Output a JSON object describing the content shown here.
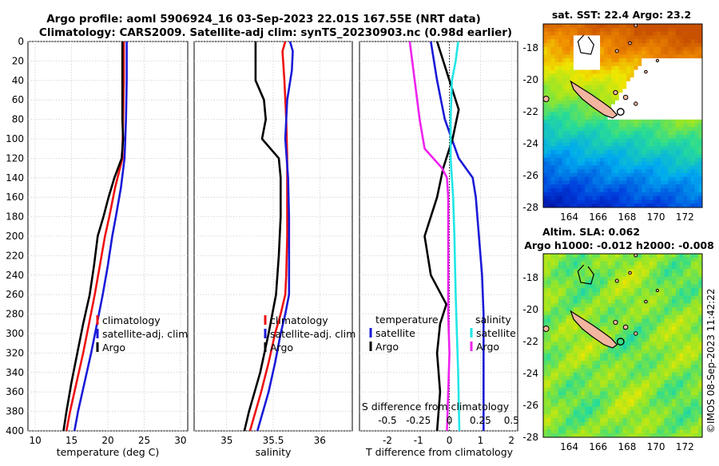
{
  "title_line1": "Argo profile: aoml 5906924_16 03-Sep-2023 22.01S 167.55E (NRT data)",
  "title_line2": "Climatology: CARS2009. Satellite-adj clim: synTS_20230903.nc (0.98d earlier)",
  "stamp": "©IMOS 08-Sep-2023 11:42:22",
  "colors": {
    "climatology": "#ee1111",
    "satellite": "#1a1ad8",
    "argo": "#000000",
    "s_sat": "#22e6e6",
    "s_argo": "#ee22ee"
  },
  "chart_data": [
    {
      "type": "line",
      "name": "temperature-panel",
      "xlabel": "temperature (deg C)",
      "ylabel": "",
      "xlim": [
        9,
        31
      ],
      "ylim": [
        400,
        0
      ],
      "xticks": [
        10,
        15,
        20,
        25,
        30
      ],
      "yticks": [
        0,
        20,
        40,
        60,
        80,
        100,
        120,
        140,
        160,
        180,
        200,
        220,
        240,
        260,
        280,
        300,
        320,
        340,
        360,
        380,
        400
      ],
      "legend": [
        "climatology",
        "satellite-adj. clim",
        "Argo"
      ],
      "series": [
        {
          "name": "climatology",
          "color": "#ee1111",
          "depth": [
            0,
            40,
            80,
            120,
            150,
            180,
            200,
            230,
            260,
            290,
            320,
            350,
            380,
            400
          ],
          "values": [
            22.2,
            22.2,
            22.1,
            22.0,
            21.0,
            20.2,
            19.6,
            18.9,
            18.2,
            17.4,
            16.6,
            15.7,
            14.8,
            14.3
          ]
        },
        {
          "name": "satellite-adj. clim",
          "color": "#1a1ad8",
          "depth": [
            0,
            40,
            80,
            120,
            150,
            180,
            200,
            230,
            260,
            290,
            320,
            350,
            380,
            400
          ],
          "values": [
            22.6,
            22.6,
            22.5,
            22.3,
            21.8,
            21.1,
            20.6,
            20.0,
            19.3,
            18.5,
            17.7,
            16.8,
            15.9,
            15.4
          ]
        },
        {
          "name": "Argo",
          "color": "#000000",
          "depth": [
            0,
            40,
            80,
            100,
            120,
            140,
            160,
            180,
            200,
            230,
            260,
            290,
            320,
            350,
            380,
            400
          ],
          "values": [
            22.0,
            22.0,
            22.0,
            22.1,
            21.9,
            20.9,
            20.1,
            19.4,
            18.6,
            18.1,
            17.5,
            16.6,
            15.8,
            15.0,
            14.3,
            13.9
          ]
        }
      ]
    },
    {
      "type": "line",
      "name": "salinity-panel",
      "xlabel": "salinity",
      "ylabel": "",
      "xlim": [
        34.65,
        36.35
      ],
      "ylim": [
        400,
        0
      ],
      "xticks": [
        35,
        35.5,
        36
      ],
      "legend": [
        "climatology",
        "satellite-adj. clim",
        "Argo"
      ],
      "series": [
        {
          "name": "climatology",
          "color": "#ee1111",
          "depth": [
            0,
            10,
            40,
            80,
            120,
            160,
            200,
            240,
            260,
            280,
            300,
            330,
            360,
            400
          ],
          "values": [
            35.63,
            35.6,
            35.62,
            35.64,
            35.65,
            35.65,
            35.65,
            35.64,
            35.63,
            35.58,
            35.52,
            35.45,
            35.37,
            35.25
          ]
        },
        {
          "name": "satellite-adj. clim",
          "color": "#1a1ad8",
          "depth": [
            0,
            10,
            30,
            60,
            100,
            140,
            180,
            220,
            260,
            280,
            300,
            330,
            360,
            400
          ],
          "values": [
            35.68,
            35.71,
            35.7,
            35.65,
            35.63,
            35.66,
            35.67,
            35.67,
            35.67,
            35.63,
            35.58,
            35.52,
            35.45,
            35.33
          ]
        },
        {
          "name": "Argo",
          "color": "#000000",
          "depth": [
            0,
            40,
            60,
            80,
            100,
            110,
            120,
            140,
            180,
            220,
            260,
            300,
            340,
            380,
            400
          ],
          "values": [
            35.31,
            35.31,
            35.4,
            35.42,
            35.38,
            35.47,
            35.56,
            35.58,
            35.58,
            35.56,
            35.53,
            35.45,
            35.36,
            35.24,
            35.19
          ]
        }
      ]
    },
    {
      "type": "line",
      "name": "difference-panel",
      "xlabel": "T difference from climatology",
      "xlabel_top": "S difference from climatology",
      "ylabel": "",
      "xlim": [
        -2.9,
        2.2
      ],
      "ylim": [
        400,
        0
      ],
      "xticks": [
        -2,
        -1,
        0,
        1,
        2
      ],
      "xticks_top": [
        "-0.5",
        "-0.25",
        "0",
        "0.25",
        "0.5"
      ],
      "legend_temperature_title": "temperature",
      "legend_salinity_title": "salinity",
      "legend_temperature": [
        "satellite",
        "Argo"
      ],
      "legend_salinity": [
        "satellite",
        "Argo"
      ],
      "series": [
        {
          "name": "T satellite",
          "color": "#1a1ad8",
          "depth": [
            0,
            40,
            80,
            120,
            140,
            160,
            200,
            240,
            280,
            320,
            360,
            400
          ],
          "values": [
            -0.6,
            -0.4,
            -0.15,
            0.3,
            0.75,
            0.85,
            0.95,
            1.05,
            1.1,
            1.1,
            1.1,
            1.1
          ]
        },
        {
          "name": "T Argo",
          "color": "#000000",
          "depth": [
            0,
            40,
            70,
            100,
            130,
            160,
            200,
            240,
            270,
            290,
            320,
            360,
            400
          ],
          "values": [
            -0.4,
            0.0,
            0.3,
            0.1,
            -0.2,
            -0.4,
            -0.8,
            -0.6,
            -0.1,
            -0.3,
            -0.4,
            -0.3,
            -0.4
          ]
        },
        {
          "name": "S satellite",
          "color": "#22e6e6",
          "depth": [
            0,
            20,
            40,
            80,
            120,
            160,
            200,
            260,
            300,
            340,
            400
          ],
          "values": [
            0.07,
            0.05,
            0.02,
            0.01,
            0.01,
            0.03,
            0.04,
            0.05,
            0.06,
            0.07,
            0.08
          ]
        },
        {
          "name": "S Argo",
          "color": "#ee22ee",
          "depth": [
            0,
            20,
            40,
            80,
            110,
            130,
            140,
            160,
            200,
            240,
            280,
            320,
            360,
            400
          ],
          "values": [
            -0.32,
            -0.3,
            -0.28,
            -0.24,
            -0.2,
            -0.06,
            -0.02,
            -0.01,
            -0.01,
            -0.01,
            -0.01,
            0.0,
            -0.01,
            -0.02
          ]
        }
      ]
    },
    {
      "type": "heatmap",
      "name": "sst-map",
      "title": "sat. SST: 22.4  Argo: 23.2",
      "xlim": [
        162.2,
        173.2
      ],
      "ylim": [
        -28,
        -16.5
      ],
      "xticks": [
        164,
        166,
        168,
        170,
        172
      ],
      "yticks": [
        -18,
        -20,
        -22,
        -24,
        -26,
        -28
      ]
    },
    {
      "type": "heatmap",
      "name": "sla-map",
      "title_line1": "Altim. SLA: 0.062",
      "title_line2": "Argo h1000: -0.012 h2000: -0.008",
      "xlim": [
        162.2,
        173.2
      ],
      "ylim": [
        -28,
        -16.5
      ],
      "xticks": [
        164,
        166,
        168,
        170,
        172
      ],
      "yticks": [
        -18,
        -20,
        -22,
        -24,
        -26,
        -28
      ]
    }
  ]
}
